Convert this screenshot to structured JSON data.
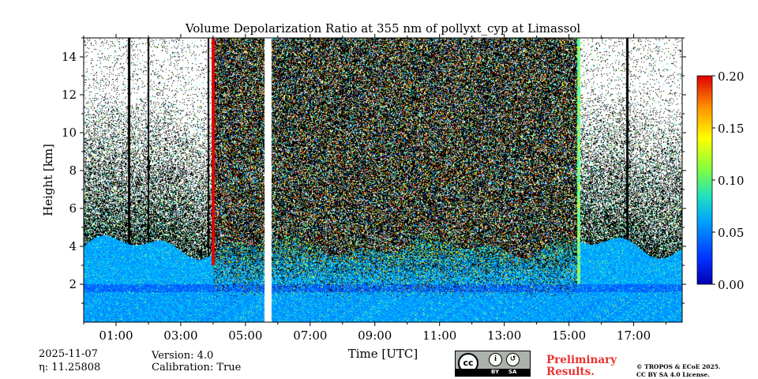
{
  "chart_data": {
    "type": "heatmap",
    "title": "Volume Depolarization Ratio at 355 nm of pollyxt_cyp at Limassol",
    "xlabel": "Time [UTC]",
    "ylabel": "Height [km]",
    "xlim": [
      0,
      18.5
    ],
    "ylim": [
      0,
      15
    ],
    "x_ticks": [
      1,
      3,
      5,
      7,
      9,
      11,
      13,
      15,
      17
    ],
    "x_tick_labels": [
      "01:00",
      "03:00",
      "05:00",
      "07:00",
      "09:00",
      "11:00",
      "13:00",
      "15:00",
      "17:00"
    ],
    "y_ticks": [
      2,
      4,
      6,
      8,
      10,
      12,
      14
    ],
    "y_tick_labels": [
      "2",
      "4",
      "6",
      "8",
      "10",
      "12",
      "14"
    ],
    "colorbar": {
      "range": [
        0,
        0.2
      ],
      "ticks": [
        0,
        0.05,
        0.1,
        0.15,
        0.2
      ],
      "tick_labels": [
        "0.00",
        "0.05",
        "0.10",
        "0.15",
        "0.20"
      ],
      "colormap": "jet"
    },
    "no_data_interval_hours": [
      5.6,
      5.8
    ],
    "boundary_layer_top_km": 4.0,
    "noisy_daytime_hours": [
      4.0,
      15.3
    ]
  },
  "footer": {
    "date": "2025-11-07",
    "eta": "η: 11.25808",
    "version": "Version: 4.0",
    "calibration": "Calibration: True",
    "preliminary_line1": "Preliminary",
    "preliminary_line2": "Results.",
    "copyright_line1": "© TROPOS & ECoE 2025.",
    "copyright_line2": "CC BY SA 4.0 License.",
    "cc_badge": {
      "symbol": "cc",
      "by": "BY",
      "sa": "SA"
    }
  }
}
